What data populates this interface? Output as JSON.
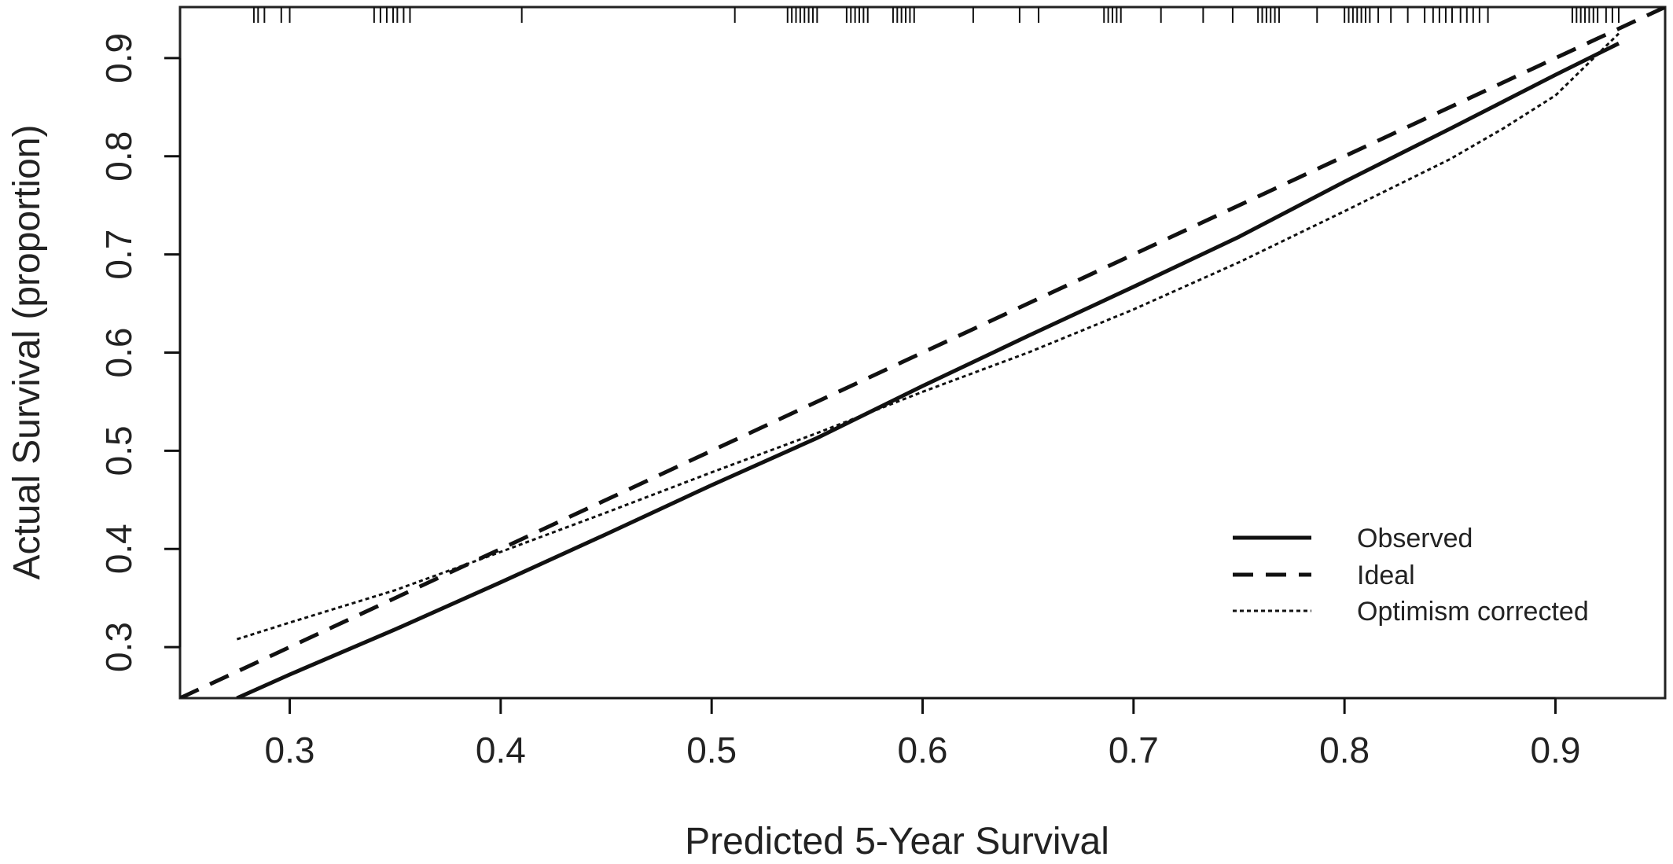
{
  "chart_data": {
    "type": "line",
    "title": "",
    "xlabel": "Predicted 5-Year Survival",
    "ylabel": "Actual Survival (proportion)",
    "xlim": [
      0.248,
      0.952
    ],
    "ylim": [
      0.248,
      0.952
    ],
    "x_ticks": [
      0.3,
      0.4,
      0.5,
      0.6,
      0.7,
      0.8,
      0.9
    ],
    "y_ticks": [
      0.3,
      0.4,
      0.5,
      0.6,
      0.7,
      0.8,
      0.9
    ],
    "x_tick_labels": [
      "0.3",
      "0.4",
      "0.5",
      "0.6",
      "0.7",
      "0.8",
      "0.9"
    ],
    "y_tick_labels": [
      "0.3",
      "0.4",
      "0.5",
      "0.6",
      "0.7",
      "0.8",
      "0.9"
    ],
    "grid": false,
    "legend_position": "bottom-right",
    "color": "#111111",
    "series": [
      {
        "name": "Observed",
        "line_style": "solid",
        "x": [
          0.275,
          0.3,
          0.35,
          0.4,
          0.45,
          0.5,
          0.55,
          0.6,
          0.65,
          0.7,
          0.75,
          0.8,
          0.85,
          0.9,
          0.93
        ],
        "y": [
          0.248,
          0.272,
          0.318,
          0.366,
          0.415,
          0.465,
          0.513,
          0.566,
          0.617,
          0.667,
          0.718,
          0.774,
          0.828,
          0.883,
          0.915
        ]
      },
      {
        "name": "Ideal",
        "line_style": "dashed",
        "x": [
          0.248,
          0.952
        ],
        "y": [
          0.248,
          0.952
        ]
      },
      {
        "name": "Optimism corrected",
        "line_style": "dotted",
        "x": [
          0.275,
          0.3,
          0.35,
          0.4,
          0.45,
          0.5,
          0.55,
          0.6,
          0.65,
          0.7,
          0.75,
          0.8,
          0.85,
          0.875,
          0.9,
          0.93
        ],
        "y": [
          0.308,
          0.325,
          0.358,
          0.397,
          0.437,
          0.478,
          0.518,
          0.56,
          0.6,
          0.644,
          0.692,
          0.744,
          0.797,
          0.828,
          0.862,
          0.925
        ]
      }
    ],
    "rug_x": [
      0.283,
      0.285,
      0.288,
      0.296,
      0.3,
      0.34,
      0.343,
      0.346,
      0.349,
      0.351,
      0.354,
      0.357,
      0.41,
      0.511,
      0.536,
      0.538,
      0.54,
      0.542,
      0.544,
      0.546,
      0.548,
      0.55,
      0.564,
      0.566,
      0.568,
      0.57,
      0.572,
      0.574,
      0.586,
      0.588,
      0.59,
      0.592,
      0.594,
      0.596,
      0.624,
      0.646,
      0.655,
      0.686,
      0.688,
      0.69,
      0.692,
      0.694,
      0.713,
      0.733,
      0.747,
      0.759,
      0.761,
      0.763,
      0.765,
      0.767,
      0.769,
      0.787,
      0.8,
      0.802,
      0.804,
      0.806,
      0.808,
      0.81,
      0.812,
      0.816,
      0.822,
      0.83,
      0.838,
      0.842,
      0.845,
      0.848,
      0.851,
      0.855,
      0.858,
      0.861,
      0.864,
      0.868,
      0.908,
      0.91,
      0.912,
      0.914,
      0.916,
      0.918,
      0.92,
      0.924,
      0.927,
      0.93
    ]
  }
}
